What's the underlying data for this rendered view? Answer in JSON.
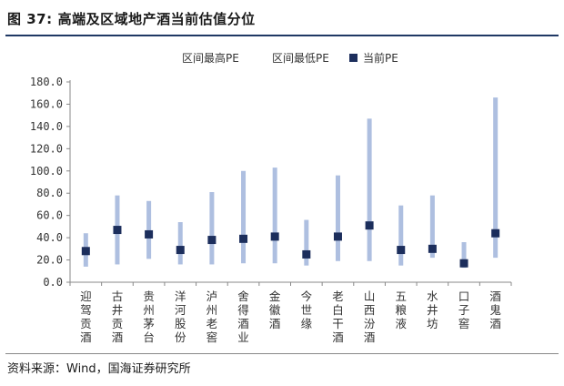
{
  "figure": {
    "number": "图 37:",
    "title": "高端及区域地产酒当前估值分位",
    "source": "资料来源：Wind，国海证券研究所"
  },
  "legend": {
    "max_label": "区间最高PE",
    "min_label": "区间最低PE",
    "current_label": "当前PE"
  },
  "colors": {
    "range_bar": "#aebfe0",
    "current_marker": "#1c2e5c",
    "axis": "#888888"
  },
  "chart_data": {
    "type": "bar",
    "title": "高端及区域地产酒当前估值分位",
    "categories": [
      "迎驾贡酒",
      "古井贡酒",
      "贵州茅台",
      "洋河股份",
      "泸州老窖",
      "舍得酒业",
      "金徽酒",
      "今世缘",
      "老白干酒",
      "山西汾酒",
      "五粮液",
      "水井坊",
      "口子窖",
      "酒鬼酒"
    ],
    "series": [
      {
        "name": "区间最高PE",
        "values": [
          44,
          78,
          73,
          54,
          81,
          100,
          103,
          56,
          96,
          147,
          69,
          78,
          36,
          166
        ]
      },
      {
        "name": "区间最低PE",
        "values": [
          14,
          16,
          21,
          16,
          16,
          17,
          17,
          15,
          19,
          19,
          15,
          22,
          13,
          22
        ]
      },
      {
        "name": "当前PE",
        "values": [
          28,
          47,
          43,
          29,
          38,
          39,
          41,
          25,
          41,
          51,
          29,
          30,
          17,
          44
        ]
      }
    ],
    "yticks": [
      "180.0",
      "160.0",
      "140.0",
      "120.0",
      "100.0",
      "80.0",
      "60.0",
      "40.0",
      "20.0",
      "0.0"
    ],
    "ylim": [
      0,
      180
    ],
    "grid": false,
    "legend_position": "top"
  }
}
